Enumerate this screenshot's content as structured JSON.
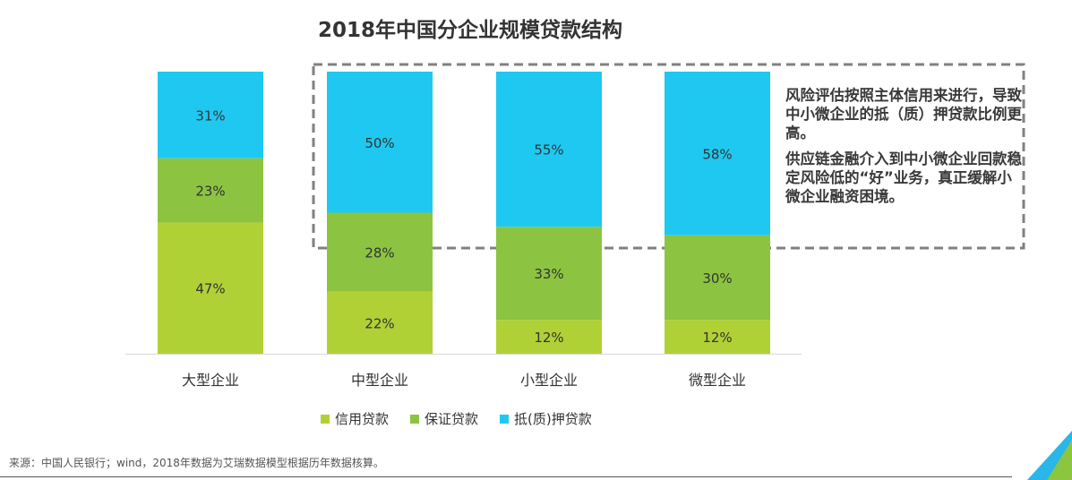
{
  "title": "2018年中国分企业规模贷款结构",
  "note": {
    "line1": "风险评估按照主体信用来进行，导致中小微企业的抵（质）押贷款比例更高。",
    "line2": "供应链金融介入到中小微企业回款稳定风险低的“好”业务，真正缓解小微企业融资困境。"
  },
  "source": "来源：中国人民银行；wind，2018年数据为艾瑞数据模型根据历年数据核算。",
  "colors": {
    "credit": "#b0d136",
    "guarantee": "#8cc441",
    "mortgage": "#1fc8f0",
    "dashed_border": "#808080",
    "corner_green": "#8cc63f",
    "corner_blue": "#29b6e8"
  },
  "chart_data": {
    "type": "bar",
    "stacked": true,
    "categories": [
      "大型企业",
      "中型企业",
      "小型企业",
      "微型企业"
    ],
    "series": [
      {
        "name": "信用贷款",
        "values": [
          47,
          22,
          12,
          12
        ],
        "labels": [
          "47%",
          "22%",
          "12%",
          "12%"
        ],
        "color": "#b0d136"
      },
      {
        "name": "保证贷款",
        "values": [
          23,
          28,
          33,
          30
        ],
        "labels": [
          "23%",
          "28%",
          "33%",
          "30%"
        ],
        "color": "#8cc441"
      },
      {
        "name": "抵(质)押贷款",
        "values": [
          31,
          50,
          55,
          58
        ],
        "labels": [
          "31%",
          "50%",
          "55%",
          "58%"
        ],
        "color": "#1fc8f0"
      }
    ],
    "ylim": [
      0,
      100
    ],
    "grid": false,
    "legend_position": "bottom"
  }
}
